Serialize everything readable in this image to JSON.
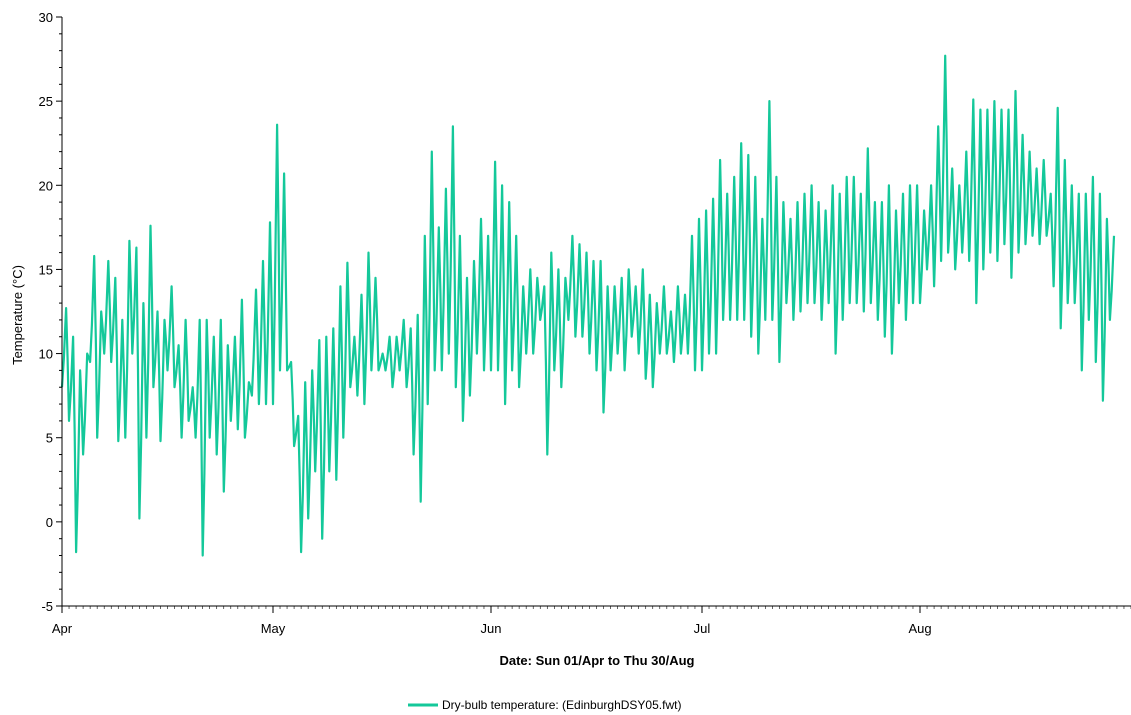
{
  "chart_data": {
    "type": "line",
    "title": "",
    "xlabel": "Date: Sun 01/Apr to Thu 30/Aug",
    "ylabel": "Temperature (°C)",
    "x_start": "2018-04-01",
    "x_end": "2018-08-30",
    "x_tick_labels": [
      "Apr",
      "May",
      "Jun",
      "Jul",
      "Aug"
    ],
    "x_tick_dates": [
      "2018-04-01",
      "2018-05-01",
      "2018-06-01",
      "2018-07-01",
      "2018-08-01"
    ],
    "ylim": [
      -5,
      30
    ],
    "y_ticks": [
      -5,
      0,
      5,
      10,
      15,
      20,
      25,
      30
    ],
    "grid": false,
    "legend_position": "bottom",
    "series": [
      {
        "name": "Dry-bulb temperature: (EdinburghDSY05.fwt)",
        "color": "#14c89a",
        "x": [
          "2018-04-01",
          "2018-04-02",
          "2018-04-03",
          "2018-04-04",
          "2018-04-05",
          "2018-04-06",
          "2018-04-07",
          "2018-04-08",
          "2018-04-09",
          "2018-04-10",
          "2018-04-11",
          "2018-04-12",
          "2018-04-13",
          "2018-04-14",
          "2018-04-15",
          "2018-04-16",
          "2018-04-17",
          "2018-04-18",
          "2018-04-19",
          "2018-04-20",
          "2018-04-21",
          "2018-04-22",
          "2018-04-23",
          "2018-04-24",
          "2018-04-25",
          "2018-04-26",
          "2018-04-27",
          "2018-04-28",
          "2018-04-29",
          "2018-04-30",
          "2018-05-01",
          "2018-05-02",
          "2018-05-03",
          "2018-05-04",
          "2018-05-05",
          "2018-05-06",
          "2018-05-07",
          "2018-05-08",
          "2018-05-09",
          "2018-05-10",
          "2018-05-11",
          "2018-05-12",
          "2018-05-13",
          "2018-05-14",
          "2018-05-15",
          "2018-05-16",
          "2018-05-17",
          "2018-05-18",
          "2018-05-19",
          "2018-05-20",
          "2018-05-21",
          "2018-05-22",
          "2018-05-23",
          "2018-05-24",
          "2018-05-25",
          "2018-05-26",
          "2018-05-27",
          "2018-05-28",
          "2018-05-29",
          "2018-05-30",
          "2018-05-31",
          "2018-06-01",
          "2018-06-02",
          "2018-06-03",
          "2018-06-04",
          "2018-06-05",
          "2018-06-06",
          "2018-06-07",
          "2018-06-08",
          "2018-06-09",
          "2018-06-10",
          "2018-06-11",
          "2018-06-12",
          "2018-06-13",
          "2018-06-14",
          "2018-06-15",
          "2018-06-16",
          "2018-06-17",
          "2018-06-18",
          "2018-06-19",
          "2018-06-20",
          "2018-06-21",
          "2018-06-22",
          "2018-06-23",
          "2018-06-24",
          "2018-06-25",
          "2018-06-26",
          "2018-06-27",
          "2018-06-28",
          "2018-06-29",
          "2018-06-30",
          "2018-07-01",
          "2018-07-02",
          "2018-07-03",
          "2018-07-04",
          "2018-07-05",
          "2018-07-06",
          "2018-07-07",
          "2018-07-08",
          "2018-07-09",
          "2018-07-10",
          "2018-07-11",
          "2018-07-12",
          "2018-07-13",
          "2018-07-14",
          "2018-07-15",
          "2018-07-16",
          "2018-07-17",
          "2018-07-18",
          "2018-07-19",
          "2018-07-20",
          "2018-07-21",
          "2018-07-22",
          "2018-07-23",
          "2018-07-24",
          "2018-07-25",
          "2018-07-26",
          "2018-07-27",
          "2018-07-28",
          "2018-07-29",
          "2018-07-30",
          "2018-07-31",
          "2018-08-01",
          "2018-08-02",
          "2018-08-03",
          "2018-08-04",
          "2018-08-05",
          "2018-08-06",
          "2018-08-07",
          "2018-08-08",
          "2018-08-09",
          "2018-08-10",
          "2018-08-11",
          "2018-08-12",
          "2018-08-13",
          "2018-08-14",
          "2018-08-15",
          "2018-08-16",
          "2018-08-17",
          "2018-08-18",
          "2018-08-19",
          "2018-08-20",
          "2018-08-21",
          "2018-08-22",
          "2018-08-23",
          "2018-08-24",
          "2018-08-25",
          "2018-08-26",
          "2018-08-27",
          "2018-08-28",
          "2018-08-29",
          "2018-08-30"
        ],
        "min": [
          8.0,
          6.0,
          -1.8,
          4.0,
          9.5,
          5.0,
          10.0,
          9.5,
          4.8,
          5.0,
          10.0,
          0.2,
          5.0,
          8.0,
          4.8,
          9.0,
          8.0,
          5.0,
          6.0,
          5.0,
          -2.0,
          5.0,
          4.0,
          1.8,
          6.0,
          5.5,
          5.0,
          7.5,
          7.0,
          7.0,
          7.0,
          9.0,
          9.0,
          4.5,
          -1.8,
          0.2,
          3.0,
          -1.0,
          3.0,
          2.5,
          5.0,
          8.0,
          7.5,
          7.0,
          9.0,
          9.0,
          9.0,
          8.0,
          9.0,
          8.0,
          4.0,
          1.2,
          7.0,
          9.0,
          9.0,
          10.0,
          8.0,
          6.0,
          7.5,
          10.0,
          9.0,
          9.0,
          9.0,
          7.0,
          9.0,
          8.0,
          10.0,
          10.0,
          12.0,
          4.0,
          9.0,
          8.0,
          12.0,
          11.0,
          11.0,
          10.0,
          9.0,
          6.5,
          9.0,
          10.0,
          9.0,
          11.0,
          10.0,
          8.5,
          8.0,
          10.0,
          10.0,
          9.5,
          10.0,
          10.0,
          9.0,
          9.0,
          10.0,
          10.0,
          12.0,
          12.0,
          12.0,
          12.0,
          11.0,
          10.0,
          12.0,
          12.0,
          9.5,
          13.0,
          12.0,
          12.5,
          13.0,
          13.0,
          12.0,
          13.0,
          10.0,
          12.0,
          13.0,
          13.0,
          12.5,
          13.0,
          12.0,
          11.0,
          10.0,
          13.0,
          12.0,
          13.0,
          13.0,
          15.0,
          14.0,
          15.5,
          16.0,
          15.0,
          16.0,
          15.5,
          13.0,
          15.0,
          16.0,
          15.5,
          16.5,
          14.5,
          16.0,
          16.5,
          17.0,
          16.5,
          17.0,
          14.0,
          11.5,
          13.0,
          13.0,
          9.0,
          12.0,
          9.5,
          7.2,
          12.0
        ],
        "max": [
          12.7,
          11.0,
          9.0,
          10.0,
          15.8,
          12.5,
          15.5,
          14.5,
          12.0,
          16.7,
          16.3,
          13.0,
          17.6,
          12.5,
          12.0,
          14.0,
          10.5,
          12.0,
          8.0,
          12.0,
          12.0,
          11.0,
          12.0,
          10.5,
          11.0,
          13.2,
          8.3,
          13.8,
          15.5,
          17.8,
          23.6,
          20.7,
          9.5,
          6.3,
          8.3,
          9.0,
          10.8,
          11.0,
          11.5,
          14.0,
          15.4,
          11.0,
          13.5,
          16.0,
          14.5,
          10.0,
          11.0,
          11.0,
          12.0,
          11.5,
          12.3,
          17.0,
          22.0,
          17.5,
          19.8,
          23.5,
          17.0,
          14.5,
          15.5,
          18.0,
          17.0,
          21.4,
          20.0,
          19.0,
          17.0,
          14.0,
          15.0,
          14.5,
          14.0,
          16.0,
          15.0,
          14.5,
          17.0,
          16.5,
          16.0,
          15.5,
          15.5,
          14.0,
          14.0,
          14.5,
          15.0,
          14.0,
          15.0,
          13.5,
          13.0,
          14.0,
          12.5,
          14.0,
          13.5,
          17.0,
          18.0,
          18.5,
          19.2,
          21.5,
          19.5,
          20.5,
          22.5,
          21.8,
          20.5,
          18.0,
          25.0,
          20.5,
          19.0,
          18.0,
          19.0,
          19.5,
          20.0,
          19.0,
          18.5,
          20.0,
          19.5,
          20.5,
          20.5,
          19.5,
          22.2,
          19.0,
          19.0,
          20.0,
          18.5,
          19.5,
          20.0,
          20.0,
          18.5,
          20.0,
          23.5,
          27.7,
          21.0,
          20.0,
          22.0,
          25.1,
          24.5,
          24.5,
          25.0,
          24.5,
          24.5,
          25.6,
          23.0,
          22.0,
          21.0,
          21.5,
          19.5,
          24.6,
          21.5,
          20.0,
          19.5,
          19.5,
          20.5,
          19.5,
          18.0,
          17.0,
          20.0,
          18.2
        ]
      }
    ]
  }
}
